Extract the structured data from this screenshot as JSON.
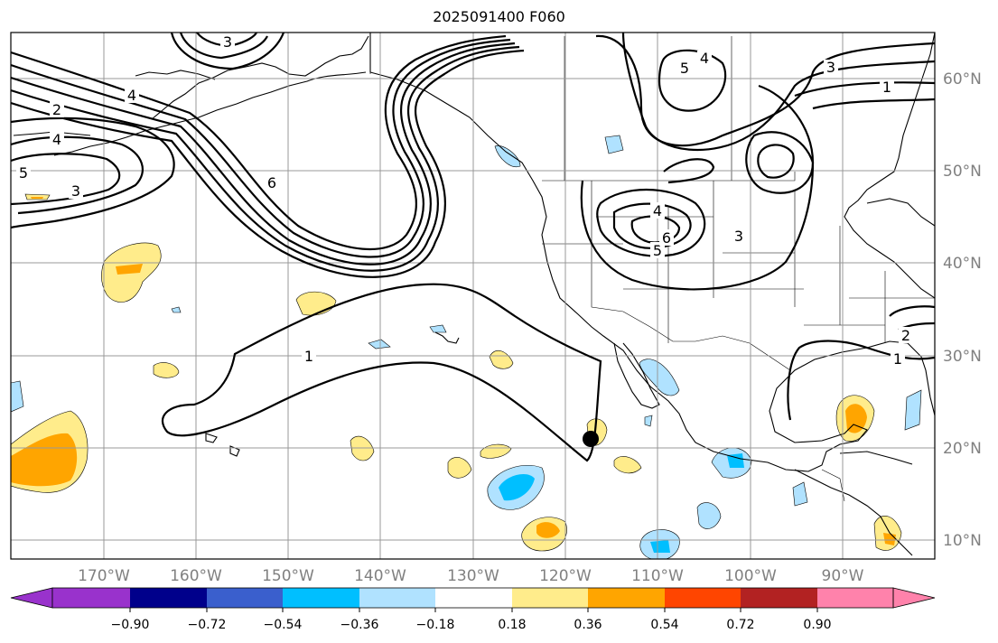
{
  "title": "2025091400 F060",
  "map": {
    "lon_labels": [
      "170°W",
      "160°W",
      "150°W",
      "140°W",
      "130°W",
      "120°W",
      "110°W",
      "100°W",
      "90°W"
    ],
    "lat_labels": [
      "60°N",
      "50°N",
      "40°N",
      "30°N",
      "20°N",
      "10°N"
    ],
    "contour_labels": [
      "1",
      "1",
      "1",
      "2",
      "2",
      "3",
      "3",
      "3",
      "4",
      "4",
      "4",
      "5",
      "5",
      "5",
      "6",
      "6",
      "3",
      "4"
    ],
    "station_marker": "station-dot"
  },
  "colorbar": {
    "ticks": [
      "−0.90",
      "−0.72",
      "−0.54",
      "−0.36",
      "−0.18",
      "0.18",
      "0.36",
      "0.54",
      "0.72",
      "0.90"
    ],
    "colors": [
      "#9932cc",
      "#00008b",
      "#3a5fcd",
      "#00bfff",
      "#b0e2ff",
      "#ffffff",
      "#ffec8b",
      "#ffa500",
      "#ff4500",
      "#b22222",
      "#ff82ab"
    ]
  }
}
